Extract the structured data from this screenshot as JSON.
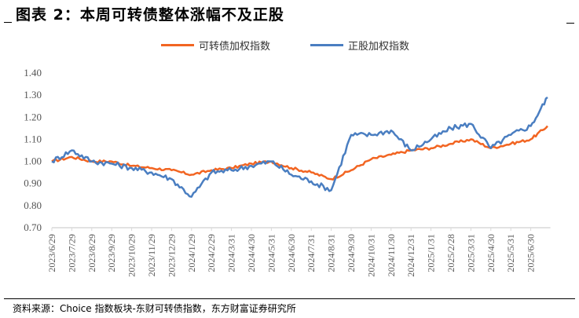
{
  "title": "图表 2：本周可转债整体涨幅不及正股",
  "footer": "资料来源：Choice 指数板块-东财可转债指数，东方财富证券研究所",
  "colors": {
    "cb": "#F26522",
    "stock": "#4A7EC1",
    "axis": "#D9D9D9"
  },
  "legend": [
    {
      "name": "可转债加权指数",
      "color": "#F26522"
    },
    {
      "name": "正股加权指数",
      "color": "#4A7EC1"
    }
  ],
  "chart_data": {
    "type": "line",
    "title": "本周可转债整体涨幅不及正股",
    "xlabel": "",
    "ylabel": "",
    "ylim": [
      0.7,
      1.4
    ],
    "yticks": [
      "1.40",
      "1.30",
      "1.20",
      "1.10",
      "1.00",
      "0.90",
      "0.80",
      "0.70"
    ],
    "grid": false,
    "legend_position": "top",
    "categories": [
      "2023/6/29",
      "2023/7/29",
      "2023/8/29",
      "2023/9/29",
      "2023/10/29",
      "2023/11/29",
      "2023/12/29",
      "2024/1/29",
      "2024/2/29",
      "2024/3/31",
      "2024/4/30",
      "2024/5/31",
      "2024/6/30",
      "2024/7/31",
      "2024/8/31",
      "2024/9/30",
      "2024/10/31",
      "2024/11/30",
      "2024/12/31",
      "2025/1/31",
      "2025/2/28",
      "2025/3/31",
      "2025/4/30",
      "2025/5/31",
      "2025/6/30"
    ],
    "series": [
      {
        "name": "可转债加权指数",
        "color": "#F26522",
        "values": [
          1.0,
          1.02,
          1.0,
          1.0,
          0.98,
          0.97,
          0.96,
          0.94,
          0.96,
          0.97,
          0.99,
          1.0,
          0.97,
          0.95,
          0.92,
          0.96,
          1.01,
          1.03,
          1.05,
          1.06,
          1.08,
          1.1,
          1.06,
          1.08,
          1.1,
          1.16
        ]
      },
      {
        "name": "正股加权指数",
        "color": "#4A7EC1",
        "values": [
          1.0,
          1.05,
          1.0,
          0.99,
          0.97,
          0.95,
          0.92,
          0.84,
          0.95,
          0.96,
          0.98,
          1.0,
          0.94,
          0.91,
          0.87,
          1.12,
          1.12,
          1.14,
          1.05,
          1.1,
          1.15,
          1.17,
          1.06,
          1.12,
          1.16,
          1.29
        ]
      }
    ],
    "series_note": "values sampled at each tick plus final point (2025/7 end)"
  }
}
